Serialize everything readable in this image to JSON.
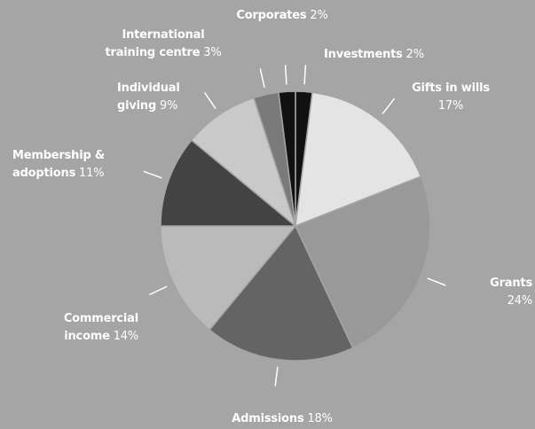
{
  "chart_data": {
    "type": "pie",
    "categories": [
      "Investments",
      "Gifts in wills",
      "Grants",
      "Admissions",
      "Commercial income",
      "Membership & adoptions",
      "Individual giving",
      "International training centre",
      "Corporates"
    ],
    "values": [
      2,
      17,
      24,
      18,
      14,
      11,
      9,
      3,
      2
    ],
    "value_labels": [
      "2%",
      "17%",
      "24%",
      "18%",
      "14%",
      "11%",
      "9%",
      "3%",
      "2%"
    ],
    "colors": [
      "#111111",
      "#e4e4e4",
      "#999999",
      "#646464",
      "#bababa",
      "#434343",
      "#c9c9c9",
      "#7a7a7a",
      "#111111"
    ]
  }
}
